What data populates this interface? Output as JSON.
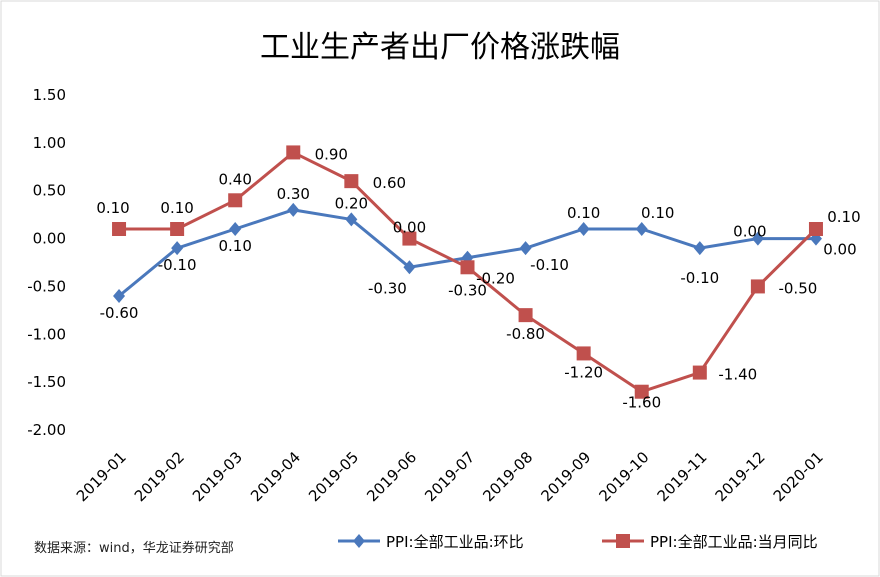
{
  "chart_data": {
    "type": "line",
    "title": "工业生产者出厂价格涨跌幅",
    "xlabel": "",
    "ylabel": "",
    "categories": [
      "2019-01",
      "2019-02",
      "2019-03",
      "2019-04",
      "2019-05",
      "2019-06",
      "2019-07",
      "2019-08",
      "2019-09",
      "2019-10",
      "2019-11",
      "2019-12",
      "2020-01"
    ],
    "y_ticks": [
      "1.50",
      "1.00",
      "0.50",
      "0.00",
      "-0.50",
      "-1.00",
      "-1.50",
      "-2.00"
    ],
    "ylim": [
      -2.0,
      1.5
    ],
    "grid": false,
    "legend_position": "bottom",
    "series": [
      {
        "name": "PPI:全部工业品:环比",
        "color": "#4a78bc",
        "marker": "diamond",
        "values": [
          -0.6,
          -0.1,
          0.1,
          0.3,
          0.2,
          -0.3,
          -0.2,
          -0.1,
          0.1,
          0.1,
          -0.1,
          0.0,
          0.0
        ],
        "labels": [
          "-0.60",
          "-0.10",
          "0.10",
          "0.30",
          "0.20",
          "-0.30",
          "-0.20",
          "-0.10",
          "0.10",
          "0.10",
          "-0.10",
          "0.00",
          "0.00"
        ]
      },
      {
        "name": "PPI:全部工业品:当月同比",
        "color": "#c0504d",
        "marker": "square",
        "values": [
          0.1,
          0.1,
          0.4,
          0.9,
          0.6,
          0.0,
          -0.3,
          -0.8,
          -1.2,
          -1.6,
          -1.4,
          -0.5,
          0.1
        ],
        "labels": [
          "0.10",
          "0.10",
          "0.40",
          "0.90",
          "0.60",
          "0.00",
          "-0.30",
          "-0.80",
          "-1.20",
          "-1.60",
          "-1.40",
          "-0.50",
          "0.10"
        ]
      }
    ],
    "source": "数据来源：wind，华龙证券研究部"
  }
}
